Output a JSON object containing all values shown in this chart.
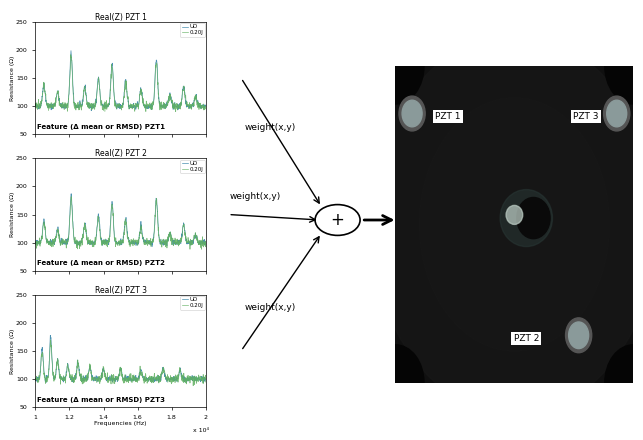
{
  "fig_width": 6.43,
  "fig_height": 4.4,
  "dpi": 100,
  "bg_color": "#ffffff",
  "plot_titles": [
    "Real(Z) PZT 1",
    "Real(Z) PZT 2",
    "Real(Z) PZT 3"
  ],
  "plot_features": [
    "Feature (Δ mean or RMSD) PZT1",
    "Feature (Δ mean or RMSD) PZT2",
    "Feature (Δ mean or RMSD) PZT3"
  ],
  "ylabel": "Resistance (Ω)",
  "xlabel": "Frequencies (Hz)",
  "xlim": [
    10000,
    20000
  ],
  "ylim": [
    50,
    250
  ],
  "yticks": [
    50,
    100,
    150,
    200,
    250
  ],
  "xscale_label": "x 10⁴",
  "legend_labels": [
    "UD",
    "0.20J"
  ],
  "line_color_UD": "#4a90b0",
  "line_color_020J": "#60b060",
  "weight_text": "weight(x,y)",
  "plus_symbol": "+",
  "pzt_labels": [
    "PZT 1",
    "PZT 3",
    "PZT 2"
  ],
  "map_bg": "#111111"
}
